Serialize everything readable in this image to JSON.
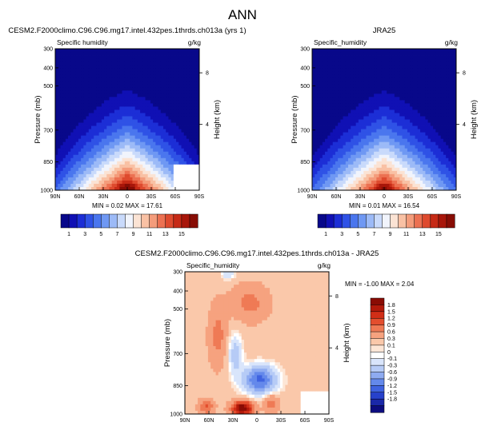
{
  "title": "ANN",
  "chart_data": [
    {
      "type": "heatmap",
      "title": "CESM2.F2000climo.C96.C96.mg17.intel.432pes.1thrds.ch013a (yrs 1)",
      "subtitle_left": "Specific humidity",
      "units": "g/kg",
      "ylabel": "Pressure (mb)",
      "ylabel_right": "Height (km)",
      "x_ticks": [
        "90N",
        "60N",
        "30N",
        "0",
        "30S",
        "60S",
        "90S"
      ],
      "y_ticks": [
        "300",
        "400",
        "500",
        "700",
        "850",
        "1000"
      ],
      "y_ticks_right": [
        "8",
        "4"
      ],
      "stats": "MIN =  0.02  MAX =  17.61",
      "min": 0.02,
      "max": 17.61
    },
    {
      "type": "heatmap",
      "title": "JRA25",
      "subtitle_left": "Specific_humidity",
      "units": "g/kg",
      "ylabel": "Pressure (mb)",
      "ylabel_right": "Height (km)",
      "x_ticks": [
        "90N",
        "60N",
        "30N",
        "0",
        "30S",
        "60S",
        "90S"
      ],
      "y_ticks": [
        "300",
        "400",
        "500",
        "700",
        "850",
        "1000"
      ],
      "y_ticks_right": [
        "8",
        "4"
      ],
      "stats": "MIN =  0.01  MAX =  16.54",
      "min": 0.01,
      "max": 16.54
    },
    {
      "type": "heatmap",
      "title": "CESM2.F2000climo.C96.C96.mg17.intel.432pes.1thrds.ch013a - JRA25",
      "subtitle_left": "Specific_humidity",
      "units": "g/kg",
      "ylabel": "Pressure (mb)",
      "ylabel_right": "Height (km)",
      "x_ticks": [
        "90N",
        "60N",
        "30N",
        "0",
        "30S",
        "60S",
        "90S"
      ],
      "y_ticks": [
        "300",
        "400",
        "500",
        "700",
        "850",
        "1000"
      ],
      "y_ticks_right": [
        "8",
        "4"
      ],
      "stats": "MIN = -1.00  MAX =  2.04",
      "min": -1.0,
      "max": 2.04
    }
  ],
  "colorbar_abs": {
    "labels": [
      "1",
      "3",
      "5",
      "7",
      "9",
      "11",
      "13",
      "15"
    ],
    "colors": [
      "#08088a",
      "#1010b4",
      "#1c2ed6",
      "#2f52e6",
      "#4a76ee",
      "#6f98f3",
      "#9cbaf7",
      "#c9dafb",
      "#f1f4fc",
      "#fbe3d4",
      "#f9c1a4",
      "#f49c7b",
      "#ec7152",
      "#de4a2e",
      "#c62a16",
      "#a8160a",
      "#870d05"
    ]
  },
  "colorbar_diff": {
    "labels": [
      "1.8",
      "1.5",
      "1.2",
      "0.9",
      "0.6",
      "0.3",
      "0.1",
      "0",
      "-0.1",
      "-0.3",
      "-0.6",
      "-0.9",
      "-1.2",
      "-1.5",
      "-1.8"
    ],
    "colors": [
      "#8a0c04",
      "#b31a0b",
      "#d12e17",
      "#e34e2e",
      "#ef7a55",
      "#f6a27f",
      "#fac8aa",
      "#fde6d6",
      "#ffffff",
      "#d9e5fb",
      "#b6cbf6",
      "#8eabf1",
      "#6489eb",
      "#3f63e0",
      "#2741cb",
      "#1a28a8",
      "#0c0c7e"
    ]
  }
}
